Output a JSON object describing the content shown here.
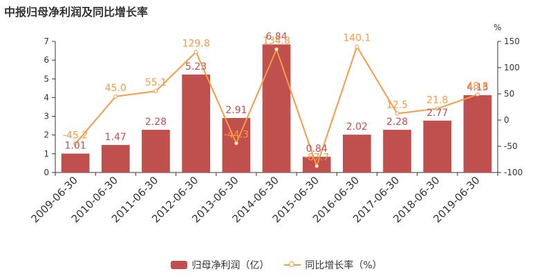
{
  "chart_data": {
    "type": "bar",
    "title": "中报归母净利润及同比增长率",
    "categories": [
      "2009-06-30",
      "2010-06-30",
      "2011-06-30",
      "2012-06-30",
      "2013-06-30",
      "2014-06-30",
      "2015-06-30",
      "2016-06-30",
      "2017-06-30",
      "2018-06-30",
      "2019-06-30"
    ],
    "series": [
      {
        "name": "归母净利润（亿）",
        "type": "bar",
        "axis": "left",
        "color": "#c0504d",
        "label_color": "#c0504d",
        "values": [
          1.01,
          1.47,
          2.28,
          5.23,
          2.91,
          6.84,
          0.84,
          2.02,
          2.28,
          2.77,
          4.13
        ],
        "labels": [
          "1.01",
          "1.47",
          "2.28",
          "5.23",
          "2.91",
          "6.84",
          "0.84",
          "2.02",
          "2.28",
          "2.77",
          "4.13"
        ]
      },
      {
        "name": "同比增长率（%）",
        "type": "line",
        "axis": "right",
        "color": "#f79a46",
        "label_color": "#f79a46",
        "values": [
          -45.2,
          45.0,
          55.1,
          129.8,
          -44.3,
          134.8,
          -87.7,
          140.1,
          12.5,
          21.8,
          48.8
        ],
        "labels": [
          "-45.2",
          "45.0",
          "55.1",
          "129.8",
          "-44.3",
          "134.8",
          "-87.7",
          "140.1",
          "12.5",
          "21.8",
          "48.8"
        ]
      }
    ],
    "y_left": {
      "ylim": [
        0,
        7
      ],
      "ticks": [
        "0",
        "1",
        "2",
        "3",
        "4",
        "5",
        "6",
        "7"
      ]
    },
    "y_right": {
      "ylim": [
        -100,
        150
      ],
      "ticks": [
        "-100",
        "-50",
        "0",
        "50",
        "100",
        "150"
      ],
      "unit": "%"
    },
    "grid": false,
    "legend_position": "bottom"
  },
  "legend": {
    "bar_label": "归母净利润（亿）",
    "line_label": "同比增长率（%）"
  }
}
